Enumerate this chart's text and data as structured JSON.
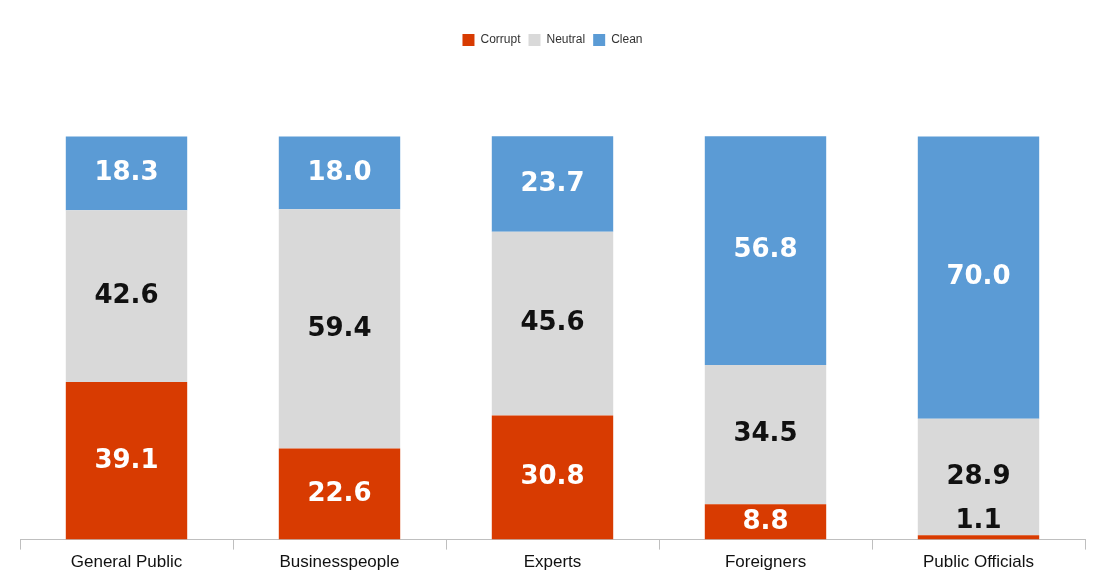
{
  "chart_data": {
    "type": "bar",
    "stacked": true,
    "categories": [
      "General Public",
      "Businesspeople",
      "Experts",
      "Foreigners",
      "Public Officials"
    ],
    "series": [
      {
        "name": "Corrupt",
        "color": "#d83b01",
        "values": [
          39.1,
          22.6,
          30.8,
          8.8,
          1.1
        ],
        "value_labels": [
          "39.1",
          "22.6",
          "30.8",
          "8.8",
          "1.1"
        ]
      },
      {
        "name": "Neutral",
        "color": "#d9d9d9",
        "values": [
          42.6,
          59.4,
          45.6,
          34.5,
          28.9
        ],
        "value_labels": [
          "42.6",
          "59.4",
          "45.6",
          "34.5",
          "28.9"
        ]
      },
      {
        "name": "Clean",
        "color": "#5b9bd5",
        "values": [
          18.3,
          18.0,
          23.7,
          56.8,
          70.0
        ],
        "value_labels": [
          "18.3",
          "18.0",
          "23.7",
          "56.8",
          "70.0"
        ]
      }
    ],
    "legend": "top",
    "grid": false
  }
}
